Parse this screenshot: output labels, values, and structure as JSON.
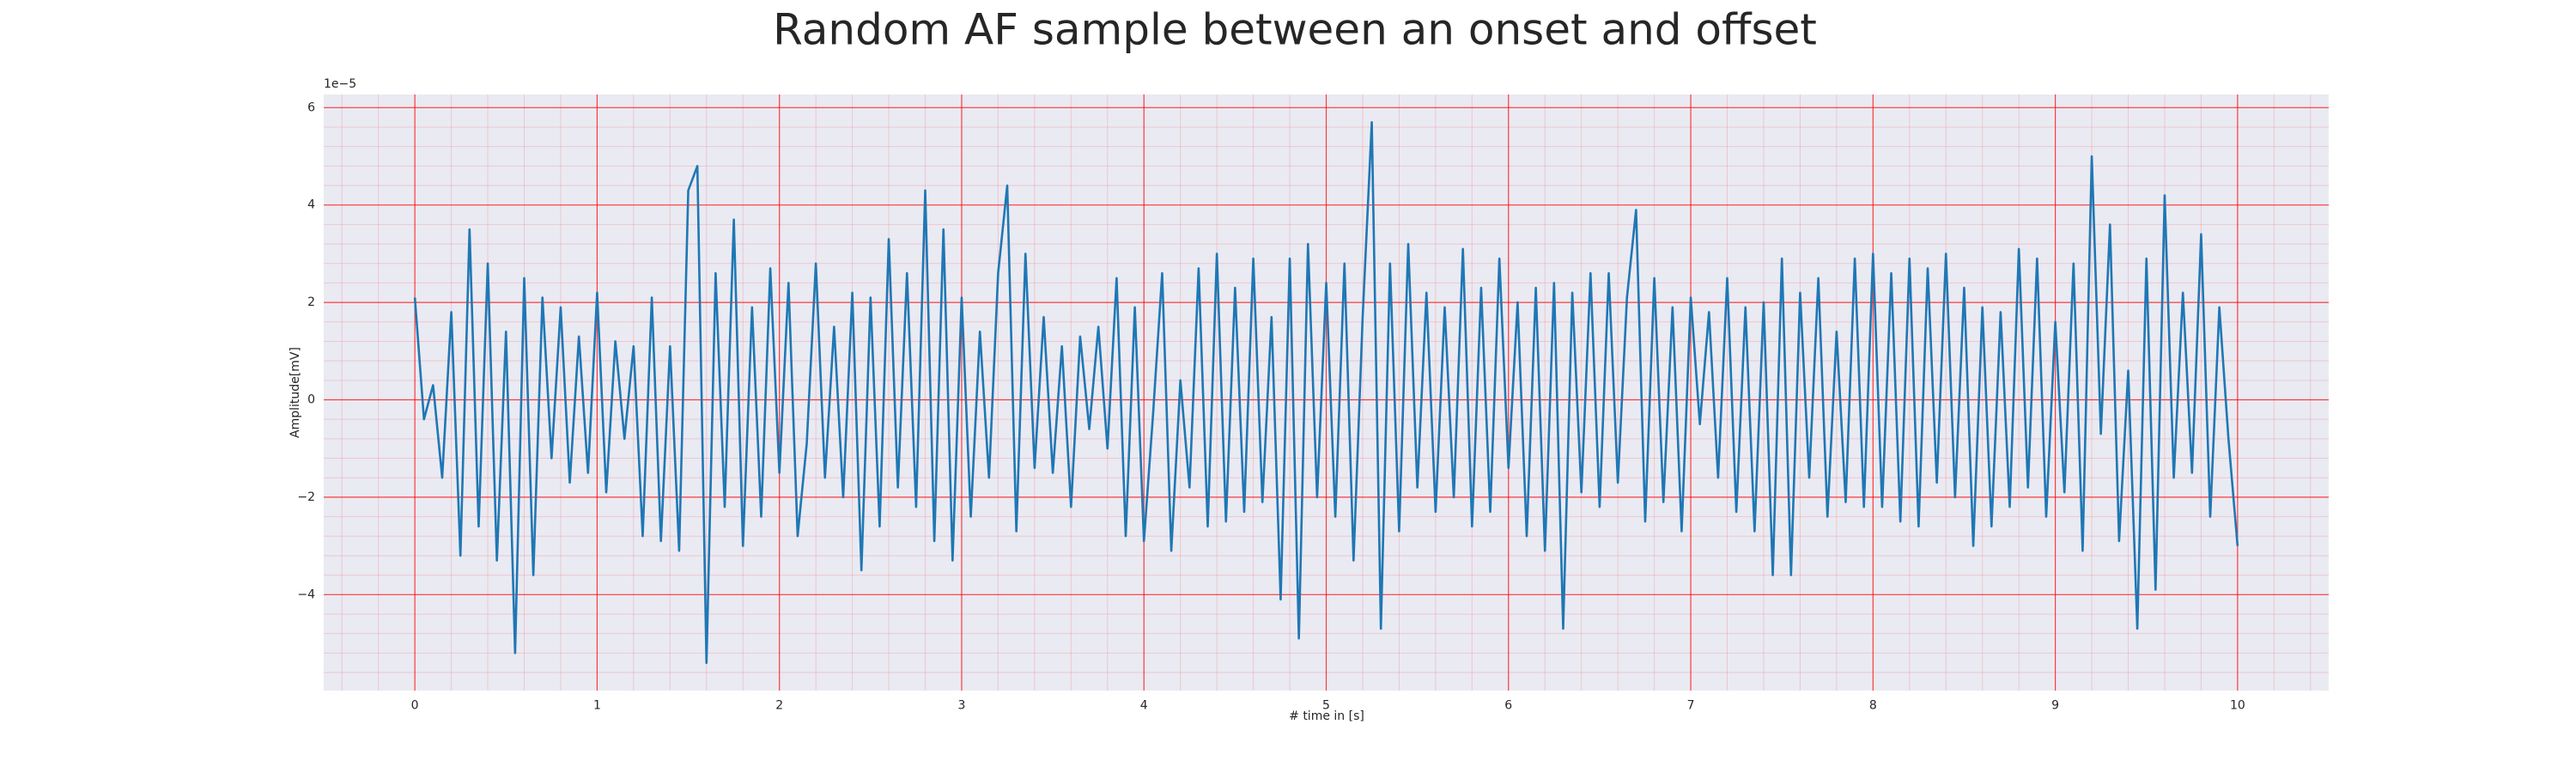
{
  "chart_data": {
    "type": "line",
    "title": "Random AF sample between an onset and offset",
    "x_label": "# time in [s]",
    "y_label": "Amplitude[mV]",
    "y_offset_label": "1e−5",
    "xlim": [
      -0.5,
      10.5
    ],
    "ylim": [
      -5.97,
      6.27
    ],
    "xticks": [
      0,
      1,
      2,
      3,
      4,
      5,
      6,
      7,
      8,
      9,
      10
    ],
    "yticks": [
      {
        "value": -4,
        "label": "−4"
      },
      {
        "value": -2,
        "label": "−2"
      },
      0,
      2,
      4,
      6
    ],
    "grid": true,
    "minor_divisions": 5,
    "background": "#eaeaf2",
    "grid_color": "#ff0000",
    "series": [
      {
        "color": "#1f77b4",
        "x": [
          0,
          0.05,
          0.1,
          0.15,
          0.2,
          0.25,
          0.3,
          0.35,
          0.4,
          0.45,
          0.5,
          0.55,
          0.6,
          0.65,
          0.7,
          0.75,
          0.8,
          0.85,
          0.9,
          0.95,
          1,
          1.05,
          1.1,
          1.15,
          1.2,
          1.25,
          1.3,
          1.35,
          1.4,
          1.45,
          1.5,
          1.55,
          1.6,
          1.65,
          1.7,
          1.75,
          1.8,
          1.85,
          1.9,
          1.95,
          2,
          2.05,
          2.1,
          2.15,
          2.2,
          2.25,
          2.3,
          2.35,
          2.4,
          2.45,
          2.5,
          2.55,
          2.6,
          2.65,
          2.7,
          2.75,
          2.8,
          2.85,
          2.9,
          2.95,
          3,
          3.05,
          3.1,
          3.15,
          3.2,
          3.25,
          3.3,
          3.35,
          3.4,
          3.45,
          3.5,
          3.55,
          3.6,
          3.65,
          3.7,
          3.75,
          3.8,
          3.85,
          3.9,
          3.95,
          4,
          4.05,
          4.1,
          4.15,
          4.2,
          4.25,
          4.3,
          4.35,
          4.4,
          4.45,
          4.5,
          4.55,
          4.6,
          4.65,
          4.7,
          4.75,
          4.8,
          4.85,
          4.9,
          4.95,
          5,
          5.05,
          5.1,
          5.15,
          5.2,
          5.25,
          5.3,
          5.35,
          5.4,
          5.45,
          5.5,
          5.55,
          5.6,
          5.65,
          5.7,
          5.75,
          5.8,
          5.85,
          5.9,
          5.95,
          6,
          6.05,
          6.1,
          6.15,
          6.2,
          6.25,
          6.3,
          6.35,
          6.4,
          6.45,
          6.5,
          6.55,
          6.6,
          6.65,
          6.7,
          6.75,
          6.8,
          6.85,
          6.9,
          6.95,
          7,
          7.05,
          7.1,
          7.15,
          7.2,
          7.25,
          7.3,
          7.35,
          7.4,
          7.45,
          7.5,
          7.55,
          7.6,
          7.65,
          7.7,
          7.75,
          7.8,
          7.85,
          7.9,
          7.95,
          8,
          8.05,
          8.1,
          8.15,
          8.2,
          8.25,
          8.3,
          8.35,
          8.4,
          8.45,
          8.5,
          8.55,
          8.6,
          8.65,
          8.7,
          8.75,
          8.8,
          8.85,
          8.9,
          8.95,
          9,
          9.05,
          9.1,
          9.15,
          9.2,
          9.25,
          9.3,
          9.35,
          9.4,
          9.45,
          9.5,
          9.55,
          9.6,
          9.65,
          9.7,
          9.75,
          9.8,
          9.85,
          9.9,
          9.95,
          10
        ],
        "values": [
          2.1,
          -0.4,
          0.3,
          -1.6,
          1.8,
          -3.2,
          3.5,
          -2.6,
          2.8,
          -3.3,
          1.4,
          -5.2,
          2.5,
          -3.6,
          2.1,
          -1.2,
          1.9,
          -1.7,
          1.3,
          -1.5,
          2.2,
          -1.9,
          1.2,
          -0.8,
          1.1,
          -2.8,
          2.1,
          -2.9,
          1.1,
          -3.1,
          4.3,
          4.8,
          -5.4,
          2.6,
          -2.2,
          3.7,
          -3.0,
          1.9,
          -2.4,
          2.7,
          -1.5,
          2.4,
          -2.8,
          -0.9,
          2.8,
          -1.6,
          1.5,
          -2.0,
          2.2,
          -3.5,
          2.1,
          -2.6,
          3.3,
          -1.8,
          2.6,
          -2.2,
          4.3,
          -2.9,
          3.5,
          -3.3,
          2.1,
          -2.4,
          1.4,
          -1.6,
          2.6,
          4.4,
          -2.7,
          3.0,
          -1.4,
          1.7,
          -1.5,
          1.1,
          -2.2,
          1.3,
          -0.6,
          1.5,
          -1.0,
          2.5,
          -2.8,
          1.9,
          -2.9,
          -0.3,
          2.6,
          -3.1,
          0.4,
          -1.8,
          2.7,
          -2.6,
          3.0,
          -2.5,
          2.3,
          -2.3,
          2.9,
          -2.1,
          1.7,
          -4.1,
          2.9,
          -4.9,
          3.2,
          -2.0,
          2.4,
          -2.4,
          2.8,
          -3.3,
          1.7,
          5.7,
          -4.7,
          2.8,
          -2.7,
          3.2,
          -1.8,
          2.2,
          -2.3,
          1.9,
          -2.0,
          3.1,
          -2.6,
          2.3,
          -2.3,
          2.9,
          -1.4,
          2.0,
          -2.8,
          2.3,
          -3.1,
          2.4,
          -4.7,
          2.2,
          -1.9,
          2.6,
          -2.2,
          2.6,
          -1.7,
          2.1,
          3.9,
          -2.5,
          2.5,
          -2.1,
          1.9,
          -2.7,
          2.1,
          -0.5,
          1.8,
          -1.6,
          2.5,
          -2.3,
          1.9,
          -2.7,
          2.0,
          -3.6,
          2.9,
          -3.6,
          2.2,
          -1.6,
          2.5,
          -2.4,
          1.4,
          -2.1,
          2.9,
          -2.2,
          3.0,
          -2.2,
          2.6,
          -2.5,
          2.9,
          -2.6,
          2.7,
          -1.7,
          3.0,
          -2.0,
          2.3,
          -3.0,
          1.9,
          -2.6,
          1.8,
          -2.2,
          3.1,
          -1.8,
          2.9,
          -2.4,
          1.6,
          -1.9,
          2.8,
          -3.1,
          5.0,
          -0.7,
          3.6,
          -2.9,
          0.6,
          -4.7,
          2.9,
          -3.9,
          4.2,
          -1.6,
          2.2,
          -1.5,
          3.4,
          -2.4,
          1.9,
          -0.8,
          -3.0
        ]
      }
    ]
  }
}
